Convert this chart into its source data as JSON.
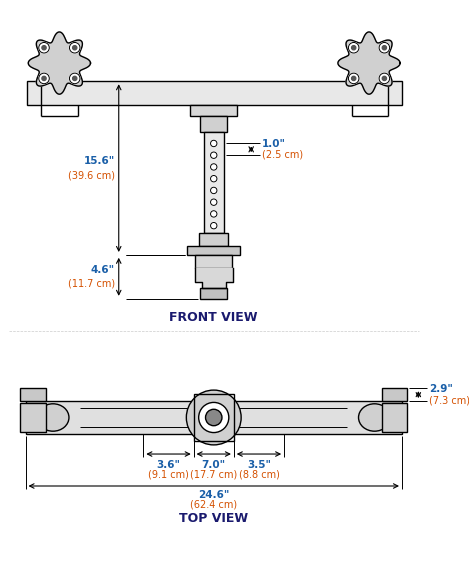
{
  "bg_color": "#ffffff",
  "line_color": "#000000",
  "dim_color_blue": "#1a5fa8",
  "dim_color_orange": "#d45000",
  "label_front_view": "FRONT VIEW",
  "label_top_view": "TOP VIEW",
  "dim_156_line1": "15.6\"",
  "dim_156_line2": "(39.6 cm)",
  "dim_46_line1": "4.6\"",
  "dim_46_line2": "(11.7 cm)",
  "dim_10_line1": "1.0\"",
  "dim_10_line2": "(2.5 cm)",
  "dim_29_line1": "2.9\"",
  "dim_29_line2": "(7.3 cm)",
  "dim_36_line1": "3.6\"",
  "dim_36_line2": "(9.1 cm)",
  "dim_70_line1": "7.0\"",
  "dim_70_line2": "(17.7 cm)",
  "dim_35_line1": "3.5\"",
  "dim_35_line2": "(8.8 cm)",
  "dim_246_line1": "24.6\"",
  "dim_246_line2": "(62.4 cm)"
}
